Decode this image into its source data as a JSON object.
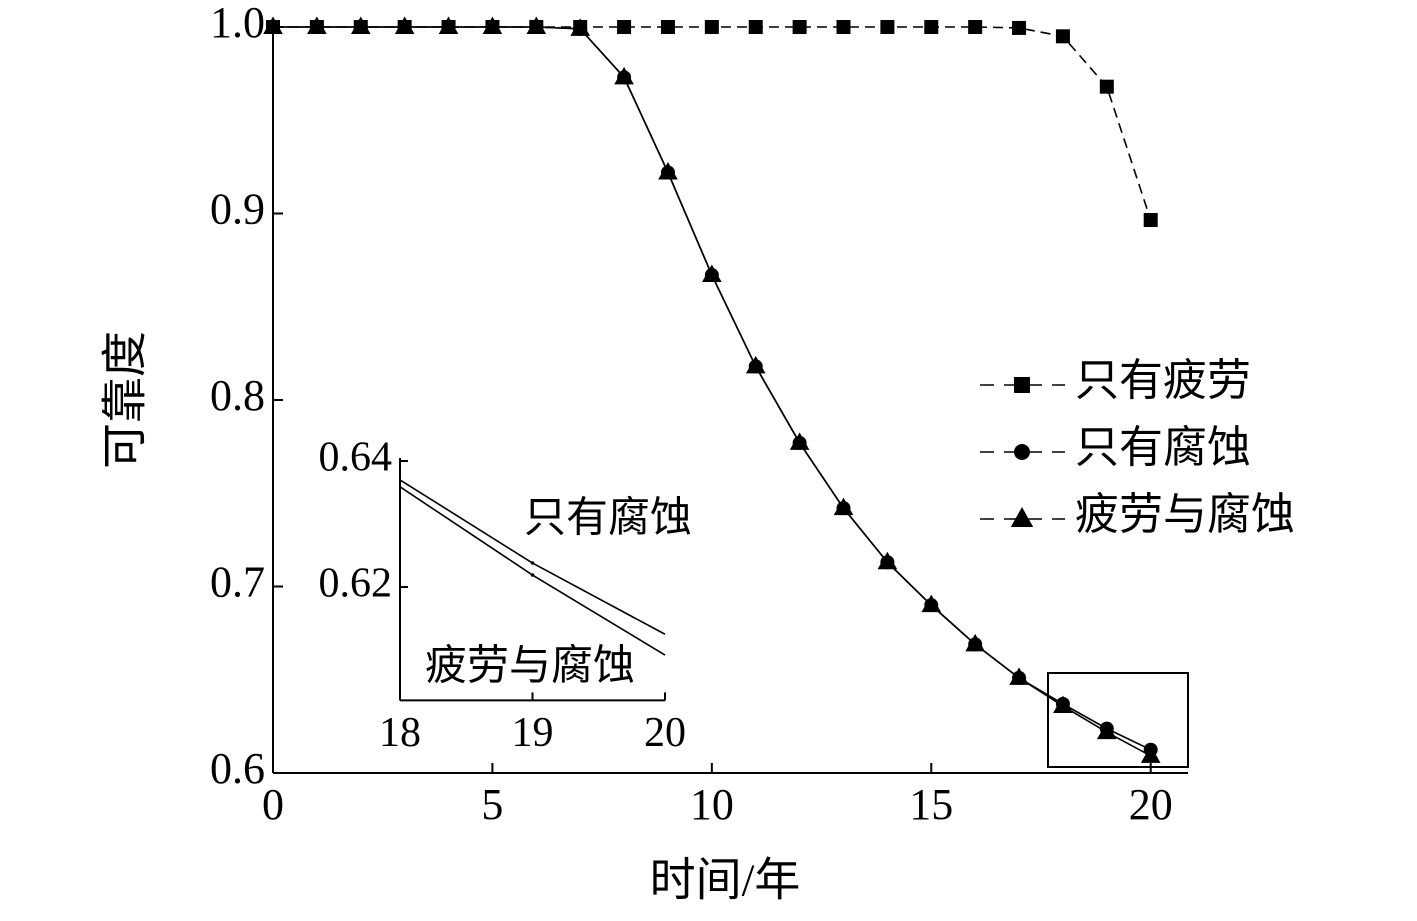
{
  "chart_data": [
    {
      "type": "line",
      "xlabel": "时间/年",
      "ylabel": "可靠度",
      "x": [
        0,
        1,
        2,
        3,
        4,
        5,
        6,
        7,
        8,
        9,
        10,
        11,
        12,
        13,
        14,
        15,
        16,
        17,
        18,
        19,
        20
      ],
      "xlim": [
        0,
        20.85
      ],
      "xticks": [
        0,
        5,
        10,
        15,
        20
      ],
      "ylim": [
        0.6,
        1.0
      ],
      "yticks": [
        0.6,
        0.7,
        0.8,
        0.9,
        {
          "value": 1.0,
          "label": "1.0"
        }
      ],
      "legend": "right",
      "series": [
        {
          "name": "只有疲劳",
          "color": "#000000",
          "marker": "square",
          "dash": true,
          "values": [
            1,
            1,
            1,
            1,
            1,
            1,
            1,
            1,
            1,
            1,
            1,
            1,
            1,
            1,
            1,
            1,
            1,
            0.9995,
            0.995,
            0.968,
            0.8965
          ]
        },
        {
          "name": "只有腐蚀",
          "color": "#000000",
          "marker": "circle",
          "dash": false,
          "values": [
            1,
            1,
            1,
            1,
            1,
            1,
            1,
            0.999,
            0.973,
            0.922,
            0.867,
            0.818,
            0.777,
            0.742,
            0.713,
            0.69,
            0.669,
            0.651,
            0.637,
            0.6238,
            0.6125
          ]
        },
        {
          "name": "疲劳与腐蚀",
          "color": "#000000",
          "marker": "triangle",
          "dash": false,
          "values": [
            1,
            1,
            1,
            1,
            1,
            1,
            1,
            0.999,
            0.973,
            0.922,
            0.867,
            0.818,
            0.777,
            0.742,
            0.713,
            0.69,
            0.669,
            0.651,
            0.6359,
            0.6219,
            0.6092
          ]
        }
      ]
    },
    {
      "type": "line",
      "annotations": [
        "只有腐蚀",
        "疲劳与腐蚀"
      ],
      "x": [
        18,
        19,
        20
      ],
      "xlim": [
        18,
        20
      ],
      "xticks": [
        18,
        19,
        20
      ],
      "ylim": [
        0.602,
        0.6405
      ],
      "yticks": [
        0.62,
        0.64
      ],
      "series": [
        {
          "color": "#000000",
          "marker": "dot",
          "values": [
            0.637,
            0.6238,
            0.6125
          ]
        },
        {
          "color": "#000000",
          "marker": "dot",
          "values": [
            0.6359,
            0.6219,
            0.6092
          ]
        }
      ]
    }
  ]
}
